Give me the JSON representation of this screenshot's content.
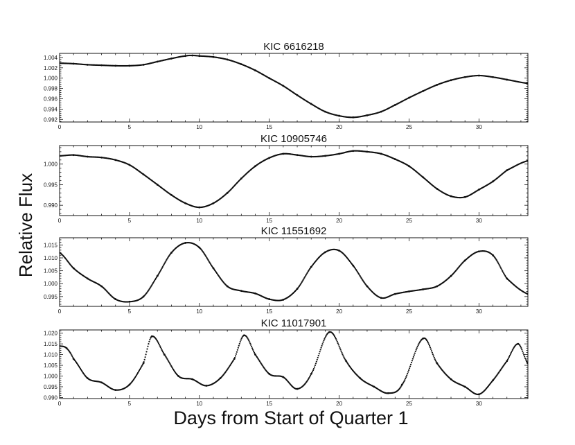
{
  "figure": {
    "ylabel": "Relative Flux",
    "xlabel": "Days from Start of Quarter 1"
  },
  "chart_data": [
    {
      "type": "scatter",
      "title": "KIC 6616218",
      "xlim": [
        0,
        33.5
      ],
      "ylim": [
        0.9915,
        1.0048
      ],
      "xticks": [
        0,
        5,
        10,
        15,
        20,
        25,
        30
      ],
      "yticks": [
        0.992,
        0.994,
        0.996,
        0.998,
        1.0,
        1.002,
        1.004
      ],
      "ytick_labels": [
        "0.992",
        "0.994",
        "0.996",
        "0.998",
        "1.000",
        "1.002",
        "1.004"
      ],
      "series": [
        {
          "marker": "dot",
          "color": "#111111",
          "x": [
            0,
            1,
            2,
            3,
            4,
            5,
            6,
            7,
            8,
            9,
            9.5,
            10,
            11,
            12,
            13,
            14,
            15,
            16,
            17,
            18,
            19,
            20,
            21,
            22,
            23,
            24,
            25,
            26,
            27,
            28,
            29,
            30,
            31,
            32,
            33.5
          ],
          "y": [
            1.0029,
            1.0028,
            1.0026,
            1.0025,
            1.0024,
            1.0024,
            1.0026,
            1.0032,
            1.0038,
            1.0043,
            1.0044,
            1.0043,
            1.0041,
            1.0036,
            1.0027,
            1.0015,
            1.0,
            0.9985,
            0.9967,
            0.995,
            0.9935,
            0.9927,
            0.9924,
            0.9928,
            0.9935,
            0.9948,
            0.9962,
            0.9975,
            0.9987,
            0.9996,
            1.0002,
            1.0005,
            1.0002,
            0.9997,
            0.999
          ]
        }
      ]
    },
    {
      "type": "scatter",
      "title": "KIC 10905746",
      "xlim": [
        0,
        33.5
      ],
      "ylim": [
        0.9875,
        1.0045
      ],
      "xticks": [
        0,
        5,
        10,
        15,
        20,
        25,
        30
      ],
      "yticks": [
        0.99,
        0.995,
        1.0
      ],
      "ytick_labels": [
        "0.990",
        "0.995",
        "1.000"
      ],
      "series": [
        {
          "marker": "dot",
          "color": "#111111",
          "x": [
            0,
            1,
            2,
            3,
            4,
            5,
            6,
            7,
            8,
            9,
            10,
            11,
            12,
            13,
            14,
            15,
            16,
            17,
            18,
            19,
            20,
            21,
            22,
            23,
            24,
            25,
            26,
            27,
            28,
            29,
            30,
            31,
            32,
            33.5
          ],
          "y": [
            1.002,
            1.0022,
            1.0018,
            1.0016,
            1.001,
            0.9998,
            0.9975,
            0.995,
            0.9925,
            0.9905,
            0.9895,
            0.9905,
            0.993,
            0.9965,
            0.9995,
            1.0015,
            1.0025,
            1.0022,
            1.0018,
            1.002,
            1.0025,
            1.0032,
            1.003,
            1.0025,
            1.0012,
            0.9995,
            0.9968,
            0.994,
            0.9922,
            0.992,
            0.9938,
            0.9958,
            0.9985,
            1.0008
          ]
        }
      ]
    },
    {
      "type": "scatter",
      "title": "KIC 11551692",
      "xlim": [
        0,
        33.5
      ],
      "ylim": [
        0.9912,
        1.0178
      ],
      "xticks": [
        0,
        5,
        10,
        15,
        20,
        25,
        30
      ],
      "yticks": [
        0.995,
        1.0,
        1.005,
        1.01,
        1.015
      ],
      "ytick_labels": [
        "0.995",
        "1.000",
        "1.005",
        "1.010",
        "1.015"
      ],
      "series": [
        {
          "marker": "dot",
          "color": "#111111",
          "x": [
            0,
            1,
            2,
            3,
            4,
            5,
            6,
            7,
            8,
            9,
            10,
            11,
            12,
            13,
            14,
            15,
            16,
            17,
            18,
            19,
            20,
            21,
            22,
            23,
            24,
            25,
            26,
            27,
            28,
            29,
            30,
            31,
            32,
            33.5
          ],
          "y": [
            1.012,
            1.006,
            1.002,
            0.999,
            0.994,
            0.993,
            0.995,
            1.003,
            1.012,
            1.0158,
            1.014,
            1.006,
            0.999,
            0.9972,
            0.9962,
            0.994,
            0.9938,
            0.998,
            1.0065,
            1.0122,
            1.0128,
            1.007,
            0.999,
            0.9945,
            0.996,
            0.997,
            0.9978,
            0.999,
            1.003,
            1.009,
            1.0125,
            1.011,
            1.002,
            0.996
          ]
        }
      ]
    },
    {
      "type": "scatter",
      "title": "KIC 11017901",
      "xlim": [
        0,
        33.5
      ],
      "ylim": [
        0.9895,
        1.0215
      ],
      "xticks": [
        0,
        5,
        10,
        15,
        20,
        25,
        30
      ],
      "yticks": [
        0.99,
        0.995,
        1.0,
        1.005,
        1.01,
        1.015,
        1.02
      ],
      "ytick_labels": [
        "0.990",
        "0.995",
        "1.000",
        "1.005",
        "1.010",
        "1.015",
        "1.020"
      ],
      "series": [
        {
          "marker": "dot",
          "color": "#111111",
          "x": [
            0,
            0.5,
            1,
            2,
            3,
            4,
            5,
            6,
            6.6,
            7.5,
            8.5,
            9.5,
            10.5,
            11.5,
            12.5,
            13.2,
            14,
            15,
            16,
            17,
            18,
            19.3,
            20.5,
            21.5,
            22.5,
            23.5,
            24.5,
            26,
            27,
            28,
            29,
            30,
            31,
            32,
            32.8,
            33.5
          ],
          "y": [
            1.014,
            1.013,
            1.008,
            0.999,
            0.997,
            0.9935,
            0.996,
            1.006,
            1.0185,
            1.01,
            1.0,
            0.9985,
            0.9955,
            0.999,
            1.008,
            1.019,
            1.01,
            1.001,
            0.9995,
            0.994,
            1.001,
            1.0205,
            1.007,
            0.999,
            0.995,
            0.992,
            0.996,
            1.0175,
            1.006,
            0.9985,
            0.995,
            0.9915,
            0.998,
            1.007,
            1.015,
            1.006
          ]
        }
      ]
    }
  ]
}
